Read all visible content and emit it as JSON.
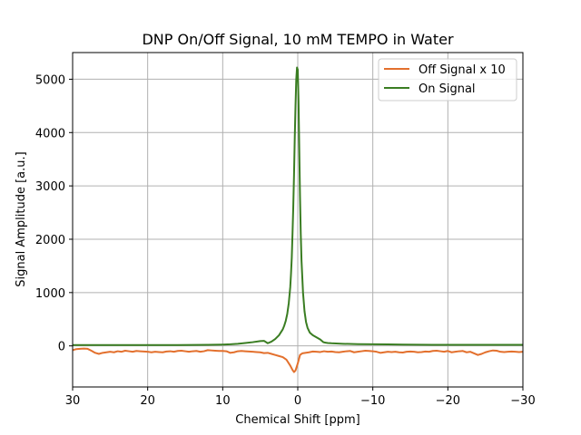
{
  "chart_data": {
    "type": "line",
    "title": "DNP On/Off Signal, 10 mM TEMPO in Water",
    "xlabel": "Chemical Shift [ppm]",
    "ylabel": "Signal Amplitude [a.u.]",
    "xlim": [
      30,
      -30
    ],
    "ylim": [
      -770,
      5500
    ],
    "x_reversed": true,
    "grid": true,
    "legend_position": "top-right",
    "xticks": [
      30,
      20,
      10,
      0,
      -10,
      -20,
      -30
    ],
    "xtick_labels": [
      "30",
      "20",
      "10",
      "0",
      "−10",
      "−20",
      "−30"
    ],
    "yticks": [
      0,
      1000,
      2000,
      3000,
      4000,
      5000
    ],
    "ytick_labels": [
      "0",
      "1000",
      "2000",
      "3000",
      "4000",
      "5000"
    ],
    "series": [
      {
        "name": "Off Signal x 10",
        "color": "#e3702d",
        "x": [
          30,
          29.5,
          29,
          28.5,
          28,
          27.5,
          27,
          26.5,
          26,
          25.5,
          25,
          24.5,
          24,
          23.5,
          23,
          22.5,
          22,
          21.5,
          21,
          20.5,
          20,
          19.5,
          19,
          18.5,
          18,
          17.5,
          17,
          16.5,
          16,
          15.5,
          15,
          14.5,
          14,
          13.5,
          13,
          12.5,
          12,
          11.5,
          11,
          10.5,
          10,
          9.5,
          9,
          8.5,
          8,
          7.5,
          7,
          6.5,
          6,
          5.5,
          5,
          4.5,
          4,
          3.5,
          3,
          2.5,
          2,
          1.5,
          1,
          0.7,
          0.5,
          0.3,
          0,
          -0.3,
          -0.6,
          -1,
          -1.5,
          -2,
          -2.5,
          -3,
          -3.5,
          -4,
          -4.5,
          -5,
          -5.5,
          -6,
          -6.5,
          -7,
          -7.5,
          -8,
          -8.5,
          -9,
          -9.5,
          -10,
          -10.5,
          -11,
          -11.5,
          -12,
          -12.5,
          -13,
          -13.5,
          -14,
          -14.5,
          -15,
          -15.5,
          -16,
          -16.5,
          -17,
          -17.5,
          -18,
          -18.5,
          -19,
          -19.5,
          -20,
          -20.5,
          -21,
          -21.5,
          -22,
          -22.5,
          -23,
          -23.5,
          -24,
          -24.5,
          -25,
          -25.5,
          -26,
          -26.5,
          -27,
          -27.5,
          -28,
          -28.5,
          -29,
          -29.5,
          -30
        ],
        "values": [
          -80,
          -60,
          -55,
          -50,
          -55,
          -90,
          -130,
          -150,
          -130,
          -120,
          -110,
          -120,
          -100,
          -110,
          -90,
          -100,
          -110,
          -95,
          -100,
          -105,
          -110,
          -120,
          -110,
          -115,
          -120,
          -105,
          -100,
          -110,
          -95,
          -90,
          -100,
          -110,
          -100,
          -95,
          -110,
          -100,
          -80,
          -85,
          -90,
          -95,
          -95,
          -100,
          -130,
          -120,
          -100,
          -95,
          -100,
          -105,
          -110,
          -115,
          -120,
          -135,
          -130,
          -150,
          -170,
          -190,
          -210,
          -260,
          -370,
          -450,
          -490,
          -460,
          -330,
          -170,
          -140,
          -130,
          -120,
          -105,
          -110,
          -115,
          -100,
          -110,
          -105,
          -115,
          -120,
          -110,
          -100,
          -95,
          -120,
          -110,
          -100,
          -90,
          -95,
          -100,
          -110,
          -130,
          -120,
          -110,
          -115,
          -110,
          -120,
          -125,
          -110,
          -105,
          -110,
          -120,
          -115,
          -105,
          -110,
          -95,
          -90,
          -100,
          -110,
          -95,
          -120,
          -110,
          -100,
          -95,
          -120,
          -110,
          -140,
          -170,
          -150,
          -120,
          -100,
          -85,
          -90,
          -110,
          -115,
          -110,
          -105,
          -110,
          -115,
          -110
        ]
      },
      {
        "name": "On Signal",
        "color": "#3a7d22",
        "x": [
          30,
          28,
          26,
          24,
          22,
          20,
          18,
          16,
          14,
          12,
          10,
          9,
          8,
          7,
          6,
          5,
          4.5,
          4,
          3.5,
          3,
          2.5,
          2,
          1.8,
          1.6,
          1.4,
          1.2,
          1.0,
          0.9,
          0.8,
          0.7,
          0.6,
          0.5,
          0.4,
          0.3,
          0.2,
          0.1,
          0,
          -0.1,
          -0.2,
          -0.3,
          -0.4,
          -0.5,
          -0.7,
          -0.9,
          -1.1,
          -1.3,
          -1.6,
          -2,
          -2.5,
          -3,
          -3.4,
          -3.7,
          -4,
          -4.5,
          -6,
          -8,
          -10,
          -12,
          -14,
          -16,
          -18,
          -20,
          -22,
          -24,
          -26,
          -28,
          -30
        ],
        "values": [
          15,
          15,
          15,
          15,
          15,
          15,
          15,
          15,
          18,
          20,
          25,
          30,
          40,
          55,
          70,
          90,
          95,
          50,
          80,
          130,
          200,
          310,
          380,
          470,
          600,
          800,
          1100,
          1350,
          1650,
          2100,
          2600,
          3200,
          3900,
          4500,
          5000,
          5220,
          5180,
          4600,
          3700,
          2800,
          2100,
          1600,
          1000,
          650,
          450,
          340,
          250,
          200,
          160,
          120,
          70,
          60,
          55,
          50,
          40,
          32,
          30,
          28,
          25,
          22,
          20,
          20,
          20,
          20,
          20,
          20,
          20
        ]
      }
    ]
  }
}
